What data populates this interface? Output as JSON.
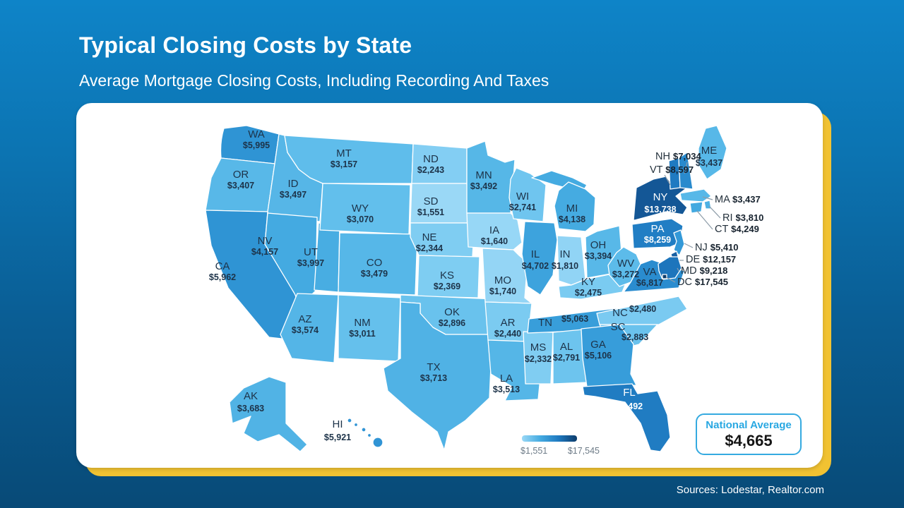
{
  "header": {
    "title": "Typical Closing Costs by State",
    "subtitle": "Average Mortgage Closing Costs, Including Recording And Taxes"
  },
  "footer": {
    "sources": "Sources: Lodestar, Realtor.com"
  },
  "chart_data": {
    "type": "heatmap",
    "title": "Typical Closing Costs by State",
    "subtitle": "Average Mortgage Closing Costs, Including Recording And Taxes",
    "unit": "USD",
    "legend_position": "bottom",
    "range": {
      "min": 1551,
      "max": 17545,
      "min_label": "$1,551",
      "max_label": "$17,545"
    },
    "national_average": {
      "label": "National Average",
      "value": 4665,
      "display": "$4,665"
    },
    "colors": {
      "background_top": "#0e84c8",
      "background_bottom": "#084a77",
      "accent_yellow": "#f1c232",
      "label_dark": "#1d3349",
      "label_light": "#ffffff",
      "legend_text": "#6d7b87",
      "nat_avg_accent": "#29a8e2",
      "scale": [
        [
          0,
          "#9ad8f6"
        ],
        [
          0.05,
          "#7fcdf2"
        ],
        [
          0.1,
          "#5fbdeb"
        ],
        [
          0.16,
          "#45abe1"
        ],
        [
          0.24,
          "#3399d8"
        ],
        [
          0.33,
          "#2a8ccf"
        ],
        [
          0.45,
          "#1e79c0"
        ],
        [
          0.6,
          "#1a66ad"
        ],
        [
          0.8,
          "#135491"
        ],
        [
          1,
          "#0d3c6b"
        ]
      ]
    },
    "states": [
      {
        "code": "WA",
        "value": 5995,
        "label": "$5,995"
      },
      {
        "code": "OR",
        "value": 3407,
        "label": "$3,407"
      },
      {
        "code": "CA",
        "value": 5962,
        "label": "$5,962"
      },
      {
        "code": "ID",
        "value": 3497,
        "label": "$3,497"
      },
      {
        "code": "NV",
        "value": 4157,
        "label": "$4,157"
      },
      {
        "code": "UT",
        "value": 3997,
        "label": "$3,997"
      },
      {
        "code": "AZ",
        "value": 3574,
        "label": "$3,574"
      },
      {
        "code": "MT",
        "value": 3157,
        "label": "$3,157"
      },
      {
        "code": "WY",
        "value": 3070,
        "label": "$3,070"
      },
      {
        "code": "CO",
        "value": 3479,
        "label": "$3,479"
      },
      {
        "code": "NM",
        "value": 3011,
        "label": "$3,011"
      },
      {
        "code": "ND",
        "value": 2243,
        "label": "$2,243"
      },
      {
        "code": "SD",
        "value": 1551,
        "label": "$1,551"
      },
      {
        "code": "NE",
        "value": 2344,
        "label": "$2,344"
      },
      {
        "code": "KS",
        "value": 2369,
        "label": "$2,369"
      },
      {
        "code": "OK",
        "value": 2896,
        "label": "$2,896"
      },
      {
        "code": "TX",
        "value": 3713,
        "label": "$3,713"
      },
      {
        "code": "MN",
        "value": 3492,
        "label": "$3,492"
      },
      {
        "code": "IA",
        "value": 1640,
        "label": "$1,640"
      },
      {
        "code": "MO",
        "value": 1740,
        "label": "$1,740"
      },
      {
        "code": "AR",
        "value": 2440,
        "label": "$2,440"
      },
      {
        "code": "LA",
        "value": 3513,
        "label": "$3,513"
      },
      {
        "code": "WI",
        "value": 2741,
        "label": "$2,741"
      },
      {
        "code": "IL",
        "value": 4702,
        "label": "$4,702"
      },
      {
        "code": "MS",
        "value": 2332,
        "label": "$2,332"
      },
      {
        "code": "MI",
        "value": 4138,
        "label": "$4,138"
      },
      {
        "code": "IN",
        "value": 1810,
        "label": "$1,810"
      },
      {
        "code": "OH",
        "value": 3394,
        "label": "$3,394"
      },
      {
        "code": "KY",
        "value": 2475,
        "label": "$2,475"
      },
      {
        "code": "TN",
        "value": 5063,
        "label": "$5,063"
      },
      {
        "code": "AL",
        "value": 2791,
        "label": "$2,791"
      },
      {
        "code": "WV",
        "value": 3272,
        "label": "$3,272"
      },
      {
        "code": "VA",
        "value": 6817,
        "label": "$6,817"
      },
      {
        "code": "NC",
        "value": 2480,
        "label": "$2,480"
      },
      {
        "code": "SC",
        "value": 2883,
        "label": "$2,883"
      },
      {
        "code": "GA",
        "value": 5106,
        "label": "$5,106"
      },
      {
        "code": "FL",
        "value": 8492,
        "label": "$8,492"
      },
      {
        "code": "PA",
        "value": 8259,
        "label": "$8,259"
      },
      {
        "code": "NY",
        "value": 13738,
        "label": "$13,738"
      },
      {
        "code": "ME",
        "value": 3437,
        "label": "$3,437"
      },
      {
        "code": "NH",
        "value": 7034,
        "label": "$7,034"
      },
      {
        "code": "VT",
        "value": 8597,
        "label": "$8,597"
      },
      {
        "code": "MA",
        "value": 3437,
        "label": "$3,437"
      },
      {
        "code": "RI",
        "value": 3810,
        "label": "$3,810"
      },
      {
        "code": "CT",
        "value": 4249,
        "label": "$4,249"
      },
      {
        "code": "NJ",
        "value": 5410,
        "label": "$5,410"
      },
      {
        "code": "DE",
        "value": 12157,
        "label": "$12,157"
      },
      {
        "code": "MD",
        "value": 9218,
        "label": "$9,218"
      },
      {
        "code": "DC",
        "value": 17545,
        "label": "$17,545"
      },
      {
        "code": "AK",
        "value": 3683,
        "label": "$3,683"
      },
      {
        "code": "HI",
        "value": 5921,
        "label": "$5,921"
      }
    ]
  }
}
